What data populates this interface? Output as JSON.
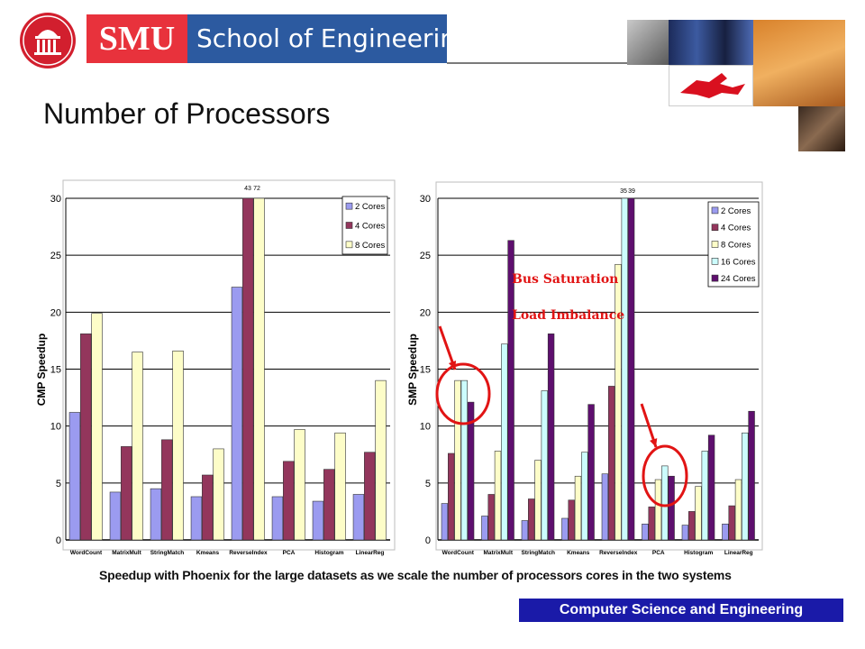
{
  "header": {
    "brand_short": "SMU",
    "brand_long": "School of Engineering"
  },
  "page_title": "Number of Processors",
  "caption": "Speedup with Phoenix for the large datasets as we scale the number of processors cores in the two systems",
  "footer": "Computer Science and Engineering",
  "annotations": {
    "bus_saturation": "Bus Saturation",
    "load_imbalance": "Load Imbalance"
  },
  "chart_data": [
    {
      "type": "bar",
      "ylabel": "CMP Speedup",
      "ylim": [
        0,
        30
      ],
      "yticks": [
        0,
        5,
        10,
        15,
        20,
        25,
        30
      ],
      "grid": true,
      "legend_position": "top-right",
      "categories": [
        "WordCount",
        "MatrixMult",
        "StringMatch",
        "Kmeans",
        "ReverseIndex",
        "PCA",
        "Histogram",
        "LinearReg"
      ],
      "series": [
        {
          "name": "2 Cores",
          "color": "#9b9bf0",
          "values": [
            11.2,
            4.2,
            4.5,
            3.8,
            22.2,
            3.8,
            3.4,
            4.0
          ]
        },
        {
          "name": "4 Cores",
          "color": "#93365c",
          "values": [
            18.1,
            8.2,
            8.8,
            5.7,
            30,
            6.9,
            6.2,
            7.7
          ]
        },
        {
          "name": "8 Cores",
          "color": "#fdfdc8",
          "values": [
            19.9,
            16.5,
            16.6,
            8.0,
            30,
            9.7,
            9.4,
            14.0
          ]
        }
      ],
      "value_labels": [
        "43",
        "72"
      ]
    },
    {
      "type": "bar",
      "ylabel": "SMP Speedup",
      "ylim": [
        0,
        30
      ],
      "yticks": [
        0,
        5,
        10,
        15,
        20,
        25,
        30
      ],
      "grid": true,
      "legend_position": "top-right",
      "categories": [
        "WordCount",
        "MatrixMult",
        "StringMatch",
        "Kmeans",
        "ReverseIndex",
        "PCA",
        "Histogram",
        "LinearReg"
      ],
      "series": [
        {
          "name": "2 Cores",
          "color": "#9b9bf0",
          "values": [
            3.2,
            2.1,
            1.7,
            1.9,
            5.8,
            1.4,
            1.3,
            1.4
          ]
        },
        {
          "name": "4 Cores",
          "color": "#93365c",
          "values": [
            7.6,
            4.0,
            3.6,
            3.5,
            13.5,
            2.9,
            2.5,
            3.0
          ]
        },
        {
          "name": "8 Cores",
          "color": "#fdfdc8",
          "values": [
            14.0,
            7.8,
            7.0,
            5.6,
            24.2,
            5.3,
            4.7,
            5.3
          ]
        },
        {
          "name": "16 Cores",
          "color": "#ccfcfd",
          "values": [
            14.0,
            17.2,
            13.1,
            7.7,
            30,
            6.5,
            7.8,
            9.4
          ]
        },
        {
          "name": "24 Cores",
          "color": "#5e0f6e",
          "values": [
            12.1,
            26.3,
            18.1,
            11.9,
            30,
            5.6,
            9.2,
            11.3
          ]
        }
      ],
      "value_labels": [
        "35",
        "39"
      ]
    }
  ]
}
